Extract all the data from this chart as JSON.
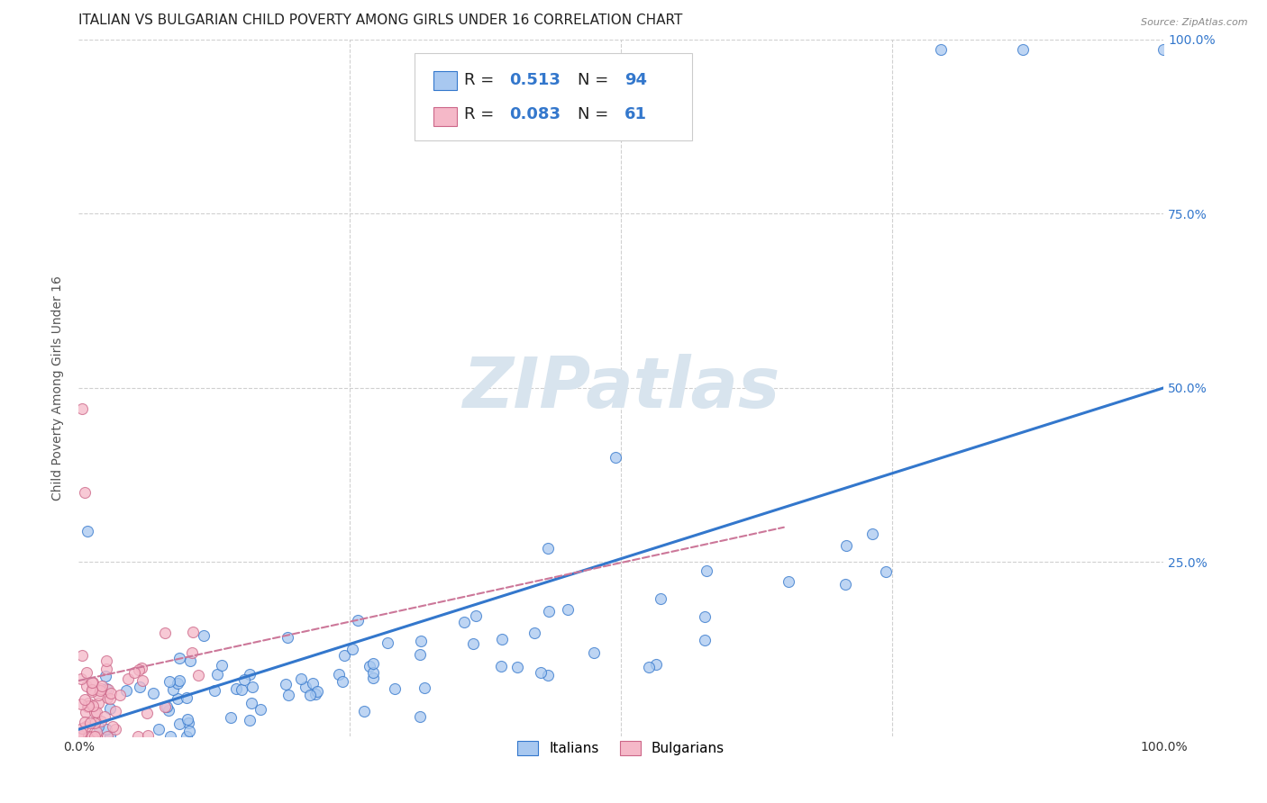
{
  "title": "ITALIAN VS BULGARIAN CHILD POVERTY AMONG GIRLS UNDER 16 CORRELATION CHART",
  "source": "Source: ZipAtlas.com",
  "ylabel": "Child Poverty Among Girls Under 16",
  "xlim": [
    0,
    1
  ],
  "ylim": [
    0,
    1
  ],
  "italian_R": 0.513,
  "italian_N": 94,
  "bulgarian_R": 0.083,
  "bulgarian_N": 61,
  "italian_color": "#a8c8f0",
  "bulgarian_color": "#f5b8c8",
  "italian_line_color": "#3377cc",
  "bulgarian_line_color": "#cc7799",
  "watermark_text": "ZIPatlas",
  "watermark_color": "#d8e4ee",
  "legend_italian_label": "Italians",
  "legend_bulgarian_label": "Bulgarians",
  "title_fontsize": 11,
  "axis_label_fontsize": 10,
  "tick_fontsize": 10,
  "right_tick_color": "#3377cc",
  "italian_line_x": [
    0.0,
    1.0
  ],
  "italian_line_y": [
    0.01,
    0.5
  ],
  "bulgarian_line_x": [
    0.0,
    0.65
  ],
  "bulgarian_line_y": [
    0.08,
    0.3
  ]
}
